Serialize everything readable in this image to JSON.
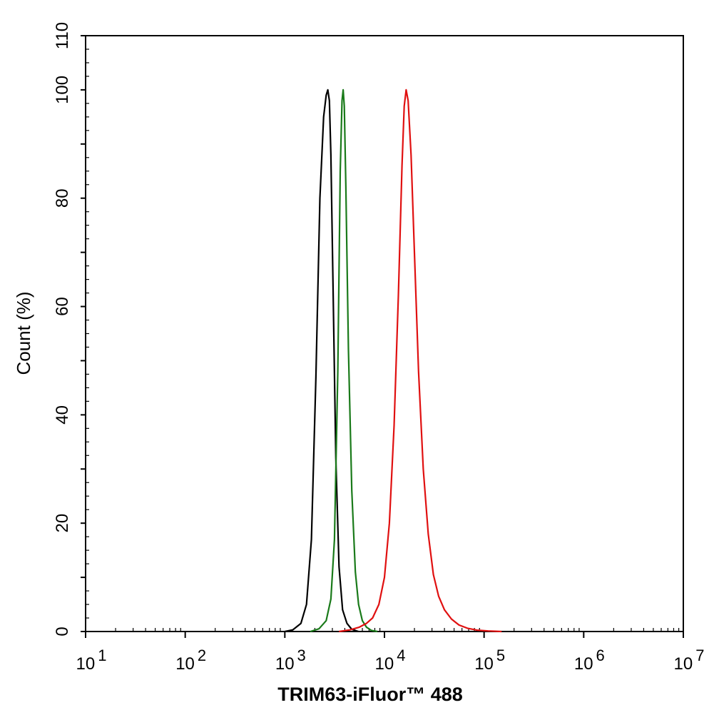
{
  "chart_data": {
    "type": "line",
    "title": "",
    "xlabel": "TRIM63-iFluor™ 488",
    "ylabel": "Count  (%)",
    "xscale": "log",
    "xlim": [
      10,
      10000000
    ],
    "ylim": [
      0,
      110
    ],
    "x_ticks": [
      {
        "value": 10,
        "base": "10",
        "exp": "1"
      },
      {
        "value": 100,
        "base": "10",
        "exp": "2"
      },
      {
        "value": 1000,
        "base": "10",
        "exp": "3"
      },
      {
        "value": 10000,
        "base": "10",
        "exp": "4"
      },
      {
        "value": 100000,
        "base": "10",
        "exp": "5"
      },
      {
        "value": 1000000,
        "base": "10",
        "exp": "6"
      },
      {
        "value": 10000000,
        "base": "10",
        "exp": "7"
      }
    ],
    "y_ticks": [
      {
        "value": 0,
        "label": "0"
      },
      {
        "value": 20,
        "label": "20"
      },
      {
        "value": 40,
        "label": "40"
      },
      {
        "value": 60,
        "label": "60"
      },
      {
        "value": 80,
        "label": "80"
      },
      {
        "value": 100,
        "label": "100"
      },
      {
        "value": 110,
        "label": "110"
      }
    ],
    "grid": false,
    "legend": "none",
    "series": [
      {
        "color": "#000000",
        "x": [
          1000,
          1200,
          1450,
          1650,
          1850,
          2050,
          2250,
          2450,
          2600,
          2700,
          2800,
          2900,
          3050,
          3250,
          3500,
          3800,
          4200,
          4700,
          5500
        ],
        "y": [
          0,
          0.3,
          1.5,
          5,
          17,
          47,
          80,
          95,
          99,
          100,
          98,
          88,
          63,
          32,
          12,
          4,
          1.5,
          0.4,
          0
        ]
      },
      {
        "color": "#1a7a1a",
        "x": [
          1800,
          2200,
          2600,
          2900,
          3150,
          3400,
          3600,
          3750,
          3850,
          3950,
          4100,
          4350,
          4700,
          5100,
          5500,
          6000,
          6600,
          7400,
          8500
        ],
        "y": [
          0,
          0.5,
          2,
          6,
          17,
          48,
          85,
          98,
          100,
          97,
          82,
          52,
          26,
          11,
          5,
          2,
          0.8,
          0.2,
          0
        ]
      },
      {
        "color": "#e01010",
        "x": [
          3500,
          4500,
          5600,
          6600,
          7600,
          8800,
          10000,
          11200,
          12500,
          13800,
          15000,
          15800,
          16500,
          17300,
          18500,
          20000,
          22000,
          24500,
          27500,
          31000,
          35000,
          40000,
          47000,
          56000,
          68000,
          85000,
          110000,
          150000
        ],
        "y": [
          0,
          0.3,
          0.8,
          1.5,
          2.5,
          5,
          10,
          20,
          38,
          62,
          86,
          97,
          100,
          98,
          88,
          70,
          48,
          30,
          18,
          10.5,
          6.5,
          4,
          2.3,
          1.2,
          0.6,
          0.25,
          0.1,
          0
        ]
      }
    ]
  }
}
